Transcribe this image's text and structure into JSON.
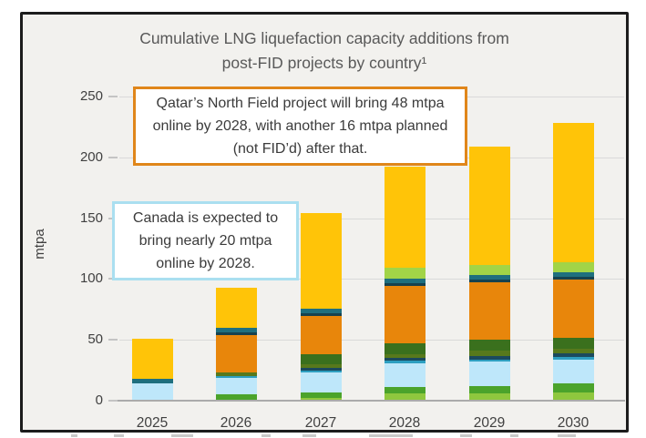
{
  "figure": {
    "title_line1": "Cumulative LNG liquefaction capacity additions from",
    "title_line2": "post-FID projects by country¹"
  },
  "y_axis": {
    "label": "mtpa",
    "ticks": [
      "250",
      "200",
      "150",
      "100",
      "50",
      "0"
    ]
  },
  "x_axis": {
    "categories": [
      "2025",
      "2026",
      "2027",
      "2028",
      "2029",
      "2030"
    ]
  },
  "annotations": {
    "qatar": {
      "text": "Qatar’s North Field project will bring 48 mtpa online by 2028, with another 16 mtpa planned (not FID’d) after that.",
      "border_color": "#e0861a"
    },
    "canada": {
      "text": "Canada is expected to bring nearly 20 mtpa online by 2028.",
      "border_color": "#aadff0"
    }
  },
  "chart_data": {
    "type": "bar",
    "stacked": true,
    "title": "Cumulative LNG liquefaction capacity additions from post-FID projects by country¹",
    "categories": [
      "2025",
      "2026",
      "2027",
      "2028",
      "2029",
      "2030"
    ],
    "unit": "mtpa",
    "ylabel": "mtpa",
    "ylim": [
      0,
      250
    ],
    "ytick_interval": 50,
    "grid": true,
    "legend_position": "none",
    "series": [
      {
        "name": "yellow-green (bottom)",
        "color": "#8fc73e",
        "values": [
          0,
          0,
          2,
          6,
          6,
          7
        ]
      },
      {
        "name": "green",
        "color": "#4ba32b",
        "values": [
          0,
          5,
          5,
          5,
          6,
          7
        ]
      },
      {
        "name": "light blue (Canada per callout, ~20 by 2028)",
        "color": "#bee7fa",
        "values": [
          14,
          14,
          16,
          20,
          20,
          20
        ]
      },
      {
        "name": "cyan",
        "color": "#2e9fc0",
        "values": [
          0,
          1,
          2,
          2,
          2,
          2
        ]
      },
      {
        "name": "dark navy",
        "color": "#1b4a5e",
        "values": [
          0,
          0,
          2,
          2,
          3,
          3
        ]
      },
      {
        "name": "olive",
        "color": "#57791c",
        "values": [
          0,
          3,
          3,
          3,
          4,
          4
        ]
      },
      {
        "name": "dark green",
        "color": "#3a701d",
        "values": [
          0,
          0,
          8,
          9,
          9,
          9
        ]
      },
      {
        "name": "orange (Qatar per callout, 48 by 2028)",
        "color": "#e8860b",
        "values": [
          0,
          31,
          32,
          48,
          48,
          48
        ]
      },
      {
        "name": "dark teal line",
        "color": "#16424f",
        "values": [
          0,
          2,
          2,
          2,
          2,
          2
        ]
      },
      {
        "name": "teal",
        "color": "#1f6f7e",
        "values": [
          4,
          4,
          4,
          4,
          4,
          4
        ]
      },
      {
        "name": "light lime (upper)",
        "color": "#a2d447",
        "values": [
          0,
          0,
          0,
          9,
          8,
          8
        ]
      },
      {
        "name": "yellow (top)",
        "color": "#ffc408",
        "values": [
          33,
          33,
          79,
          83,
          98,
          115
        ]
      }
    ],
    "totals": [
      51,
      93,
      155,
      193,
      210,
      229
    ]
  }
}
